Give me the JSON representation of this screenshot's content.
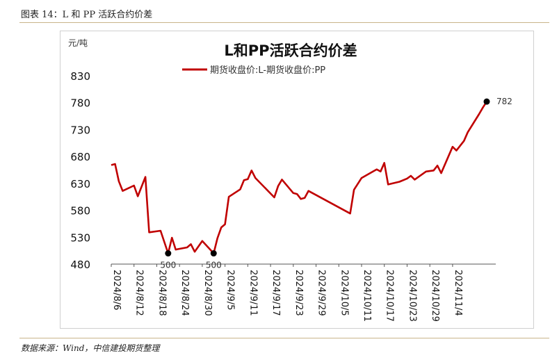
{
  "header": {
    "title": "图表 14：L 和 PP 活跃合约价差"
  },
  "footer": {
    "source": "数据来源：Wind，中信建投期货整理"
  },
  "chart_data": {
    "type": "line",
    "title": "L和PP活跃合约价差",
    "unit_label": "元/吨",
    "legend": "期货收盘价:L-期货收盘价:PP",
    "legend_position": "top-center",
    "color": "#c00000",
    "ylim": [
      480,
      830
    ],
    "yticks": [
      480,
      530,
      580,
      630,
      680,
      730,
      780,
      830
    ],
    "xticks": [
      "2024/8/6",
      "2024/8/12",
      "2024/8/18",
      "2024/8/24",
      "2024/8/30",
      "2024/9/5",
      "2024/9/11",
      "2024/9/17",
      "2024/9/23",
      "2024/9/29",
      "2024/10/5",
      "2024/10/11",
      "2024/10/17",
      "2024/10/23",
      "2024/10/29",
      "2024/11/4"
    ],
    "grid": false,
    "series": [
      {
        "points": [
          [
            "2024-08-06",
            664
          ],
          [
            "2024-08-07",
            666
          ],
          [
            "2024-08-08",
            634
          ],
          [
            "2024-08-09",
            616
          ],
          [
            "2024-08-12",
            626
          ],
          [
            "2024-08-13",
            606
          ],
          [
            "2024-08-15",
            642
          ],
          [
            "2024-08-16",
            539
          ],
          [
            "2024-08-19",
            542
          ],
          [
            "2024-08-21",
            500
          ],
          [
            "2024-08-22",
            529
          ],
          [
            "2024-08-23",
            507
          ],
          [
            "2024-08-26",
            511
          ],
          [
            "2024-08-27",
            517
          ],
          [
            "2024-08-28",
            503
          ],
          [
            "2024-08-30",
            523
          ],
          [
            "2024-09-02",
            500
          ],
          [
            "2024-09-03",
            528
          ],
          [
            "2024-09-04",
            548
          ],
          [
            "2024-09-05",
            554
          ],
          [
            "2024-09-06",
            605
          ],
          [
            "2024-09-09",
            619
          ],
          [
            "2024-09-10",
            636
          ],
          [
            "2024-09-11",
            638
          ],
          [
            "2024-09-12",
            654
          ],
          [
            "2024-09-13",
            640
          ],
          [
            "2024-09-18",
            604
          ],
          [
            "2024-09-19",
            625
          ],
          [
            "2024-09-20",
            637
          ],
          [
            "2024-09-23",
            612
          ],
          [
            "2024-09-24",
            610
          ],
          [
            "2024-09-25",
            601
          ],
          [
            "2024-09-26",
            603
          ],
          [
            "2024-09-27",
            616
          ],
          [
            "2024-10-08",
            574
          ],
          [
            "2024-10-09",
            618
          ],
          [
            "2024-10-11",
            640
          ],
          [
            "2024-10-14",
            652
          ],
          [
            "2024-10-15",
            656
          ],
          [
            "2024-10-16",
            652
          ],
          [
            "2024-10-17",
            668
          ],
          [
            "2024-10-18",
            628
          ],
          [
            "2024-10-21",
            633
          ],
          [
            "2024-10-23",
            639
          ],
          [
            "2024-10-24",
            644
          ],
          [
            "2024-10-25",
            637
          ],
          [
            "2024-10-28",
            652
          ],
          [
            "2024-10-30",
            654
          ],
          [
            "2024-10-31",
            663
          ],
          [
            "2024-11-01",
            649
          ],
          [
            "2024-11-04",
            698
          ],
          [
            "2024-11-05",
            691
          ],
          [
            "2024-11-07",
            709
          ],
          [
            "2024-11-08",
            725
          ],
          [
            "2024-11-11",
            759
          ],
          [
            "2024-11-12",
            771
          ],
          [
            "2024-11-13",
            782
          ]
        ]
      }
    ],
    "annotations": [
      {
        "date": "2024-08-21",
        "value": 500,
        "label": "500"
      },
      {
        "date": "2024-09-02",
        "value": 500,
        "label": "500"
      },
      {
        "date": "2024-11-13",
        "value": 782,
        "label": "782"
      }
    ]
  }
}
